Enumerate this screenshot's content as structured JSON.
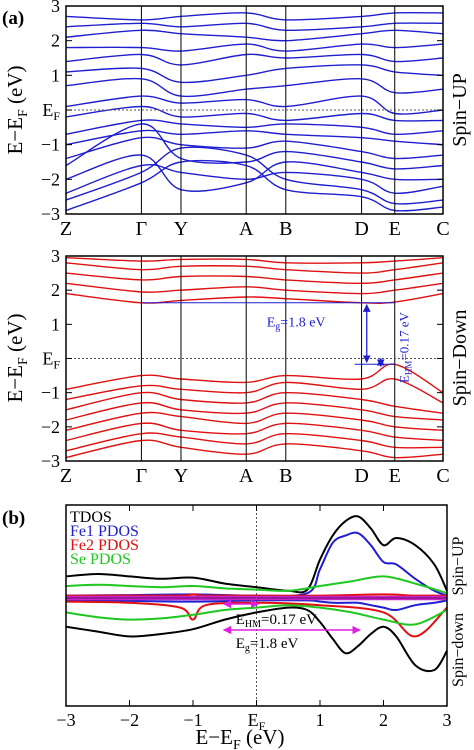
{
  "chart_data": [
    {
      "type": "line",
      "panel_label": "(a)",
      "side_label": "Spin−UP",
      "ylabel_main": "E−E",
      "ylabel_sub": "F",
      "ylabel_unit": " (eV)",
      "ylim": [
        -3,
        3
      ],
      "yticks": [
        "3",
        "2",
        "1",
        "E",
        "−1",
        "−2",
        "−3"
      ],
      "ytick_sub": "F",
      "kpoints": [
        "Z",
        "Γ",
        "Y",
        "A",
        "B",
        "D",
        "E",
        "C"
      ],
      "kpos": [
        0,
        0.2,
        0.305,
        0.478,
        0.583,
        0.784,
        0.872,
        1.0
      ],
      "band_color": "#1f1fd0",
      "series": [
        {
          "values": [
            -2.9,
            -2.1,
            -1.5,
            -1.6,
            -2.3,
            -2.5,
            -2.9,
            -2.8
          ]
        },
        {
          "values": [
            -2.6,
            -1.8,
            -1.1,
            -1.3,
            -2.0,
            -2.3,
            -2.7,
            -2.6
          ]
        },
        {
          "values": [
            -2.4,
            -1.6,
            -1.8,
            -2.0,
            -1.8,
            -2.0,
            -2.4,
            -2.2
          ]
        },
        {
          "values": [
            -2.0,
            -1.3,
            -2.3,
            -2.1,
            -1.5,
            -1.8,
            -2.0,
            -2.0
          ]
        },
        {
          "values": [
            -1.6,
            -0.4,
            -1.4,
            -1.5,
            -1.2,
            -1.5,
            -1.7,
            -1.6
          ]
        },
        {
          "values": [
            -1.4,
            -0.8,
            -1.0,
            -1.1,
            -0.9,
            -1.2,
            -1.4,
            -1.3
          ]
        },
        {
          "values": [
            -1.0,
            -0.6,
            -0.7,
            -0.6,
            -0.7,
            -0.8,
            -0.9,
            -1.0
          ]
        },
        {
          "values": [
            -0.7,
            -0.3,
            -0.4,
            -0.5,
            -0.4,
            -0.5,
            -0.7,
            -0.6
          ]
        },
        {
          "values": [
            -0.2,
            0.1,
            -0.2,
            -0.1,
            -0.3,
            -0.1,
            -0.3,
            -0.3
          ]
        },
        {
          "values": [
            0.1,
            0.4,
            0.2,
            0.3,
            0.1,
            0.4,
            -0.1,
            0.0
          ]
        },
        {
          "values": [
            0.7,
            0.9,
            0.4,
            0.6,
            0.7,
            0.9,
            0.5,
            0.6
          ]
        },
        {
          "values": [
            1.1,
            1.2,
            0.8,
            1.0,
            1.2,
            1.3,
            1.1,
            1.0
          ]
        },
        {
          "values": [
            1.4,
            1.6,
            1.3,
            1.6,
            1.5,
            1.6,
            1.4,
            1.5
          ]
        },
        {
          "values": [
            1.8,
            1.8,
            1.7,
            1.9,
            1.7,
            1.9,
            1.8,
            1.9
          ]
        },
        {
          "values": [
            2.1,
            2.3,
            2.2,
            2.1,
            2.0,
            2.2,
            2.3,
            2.2
          ]
        },
        {
          "values": [
            2.4,
            2.5,
            2.4,
            2.5,
            2.3,
            2.4,
            2.5,
            2.5
          ]
        },
        {
          "values": [
            2.7,
            2.6,
            2.7,
            2.8,
            2.6,
            2.7,
            2.8,
            2.8
          ]
        }
      ]
    },
    {
      "type": "line",
      "side_label": "Spin−Down",
      "ylabel_main": "E−E",
      "ylabel_sub": "F",
      "ylabel_unit": " (eV)",
      "ylim": [
        -3,
        3
      ],
      "yticks": [
        "3",
        "2",
        "1",
        "E",
        "−1",
        "−2",
        "−3"
      ],
      "ytick_sub": "F",
      "kpoints": [
        "Z",
        "Γ",
        "Y",
        "A",
        "B",
        "D",
        "E",
        "C"
      ],
      "kpos": [
        0,
        0.2,
        0.305,
        0.478,
        0.583,
        0.784,
        0.872,
        1.0
      ],
      "band_color": "#e01010",
      "series": [
        {
          "values": [
            -2.9,
            -2.4,
            -2.6,
            -2.8,
            -2.5,
            -2.7,
            -2.9,
            -2.8
          ]
        },
        {
          "values": [
            -2.7,
            -2.2,
            -2.3,
            -2.5,
            -2.2,
            -2.4,
            -2.6,
            -2.6
          ]
        },
        {
          "values": [
            -2.4,
            -1.9,
            -2.1,
            -2.2,
            -1.9,
            -2.1,
            -2.3,
            -2.4
          ]
        },
        {
          "values": [
            -2.1,
            -1.6,
            -1.7,
            -1.9,
            -1.6,
            -1.8,
            -2.0,
            -2.1
          ]
        },
        {
          "values": [
            -1.8,
            -1.3,
            -1.5,
            -1.6,
            -1.3,
            -1.5,
            -1.7,
            -1.8
          ]
        },
        {
          "values": [
            -1.5,
            -1.0,
            -1.2,
            -1.3,
            -1.0,
            -1.2,
            -1.4,
            -1.6
          ]
        },
        {
          "values": [
            -1.2,
            -0.8,
            -0.9,
            -1.0,
            -0.7,
            -0.9,
            -0.6,
            -1.3
          ]
        },
        {
          "values": [
            -0.9,
            -0.5,
            -0.6,
            -0.7,
            -0.5,
            -0.6,
            -0.17,
            -1.0
          ]
        },
        {
          "values": [
            1.9,
            1.63,
            1.7,
            1.8,
            1.75,
            1.63,
            1.65,
            1.9
          ]
        },
        {
          "values": [
            2.2,
            1.95,
            2.0,
            2.1,
            2.0,
            1.9,
            2.0,
            2.2
          ]
        },
        {
          "values": [
            2.5,
            2.3,
            2.4,
            2.4,
            2.3,
            2.2,
            2.3,
            2.5
          ]
        },
        {
          "values": [
            2.8,
            2.6,
            2.7,
            2.7,
            2.6,
            2.5,
            2.6,
            2.8
          ]
        },
        {
          "values": [
            2.95,
            2.85,
            2.9,
            2.9,
            2.8,
            2.8,
            2.85,
            2.95
          ]
        }
      ],
      "annotations": {
        "eg_prefix": "E",
        "eg_sub": "g",
        "eg_value": "=1.8 eV",
        "ehm_prefix": "E",
        "ehm_sub": "HM",
        "ehm_value": "=0.17 eV",
        "cbm": 1.63,
        "vbm": -0.17,
        "color": "#1f1fd0"
      }
    },
    {
      "type": "line",
      "panel_label": "(b)",
      "side_label_up": "Spin−UP",
      "side_label_down": "Spin−down",
      "xlabel_main": "E−E",
      "xlabel_sub": "F",
      "xlabel_unit": " (eV)",
      "xlim": [
        -3,
        3
      ],
      "xticks": [
        "−3",
        "−2",
        "−1",
        "E",
        "1",
        "2",
        "3"
      ],
      "xtick_sub": "F",
      "series": [
        {
          "name": "TDOS",
          "color": "#000000",
          "x": [
            -3,
            -2.5,
            -2,
            -1.5,
            -1,
            -0.5,
            0,
            0.5,
            0.8,
            1.0,
            1.2,
            1.4,
            1.6,
            1.8,
            2.0,
            2.2,
            2.5,
            2.8,
            3.0
          ],
          "up": [
            0.9,
            1.0,
            0.9,
            0.8,
            0.85,
            0.6,
            0.45,
            0.3,
            0.35,
            1.6,
            2.6,
            3.2,
            3.4,
            2.9,
            2.2,
            2.5,
            2.2,
            1.4,
            0.3
          ],
          "down": [
            -1.2,
            -1.4,
            -1.6,
            -1.5,
            -1.3,
            -0.9,
            -0.6,
            -0.4,
            -0.5,
            -1.0,
            -1.7,
            -2.3,
            -2.0,
            -1.5,
            -1.2,
            -1.6,
            -2.8,
            -3.0,
            -2.2
          ]
        },
        {
          "name": "Fe1 PDOS",
          "color": "#1f1fd0",
          "x": [
            -3,
            -2,
            -1,
            0,
            0.8,
            1.0,
            1.2,
            1.4,
            1.6,
            1.8,
            2.0,
            2.2,
            2.5,
            2.8,
            3.0
          ],
          "up": [
            0.1,
            0.12,
            0.15,
            0.1,
            0.2,
            1.2,
            2.3,
            2.6,
            2.7,
            2.2,
            1.5,
            1.4,
            0.8,
            0.3,
            0.1
          ],
          "down": [
            -0.1,
            -0.12,
            -0.15,
            -0.1,
            -0.1,
            -0.15,
            -0.2,
            -0.2,
            -0.2,
            -0.3,
            -0.4,
            -0.5,
            -0.3,
            -0.2,
            -0.1
          ]
        },
        {
          "name": "Fe2 PDOS",
          "color": "#e01010",
          "x": [
            -3,
            -2,
            -1.2,
            -1.0,
            -0.8,
            0,
            1,
            2,
            2.5,
            3.0
          ],
          "up": [
            0.1,
            0.1,
            0.1,
            0.15,
            0.1,
            0.1,
            0.1,
            0.15,
            0.1,
            0.1
          ],
          "down": [
            -0.15,
            -0.2,
            -0.4,
            -0.9,
            -0.3,
            -0.2,
            -0.3,
            -0.6,
            -1.6,
            -0.4
          ]
        },
        {
          "name": "Se PDOS",
          "color": "#1ec81e",
          "x": [
            -3,
            -2.5,
            -2,
            -1.5,
            -1,
            -0.5,
            0,
            0.5,
            1,
            1.5,
            2,
            2.5,
            3.0
          ],
          "up": [
            0.5,
            0.55,
            0.5,
            0.45,
            0.5,
            0.4,
            0.35,
            0.3,
            0.5,
            0.7,
            0.9,
            0.6,
            0.2
          ],
          "down": [
            -0.6,
            -0.8,
            -0.9,
            -0.85,
            -0.7,
            -0.5,
            -0.4,
            -0.3,
            -0.4,
            -0.6,
            -0.9,
            -1.1,
            -0.5
          ]
        },
        {
          "name": "",
          "color": "#cc22cc",
          "x": [
            -3,
            -2,
            -1,
            0,
            1,
            2,
            3
          ],
          "up": [
            0.05,
            0.05,
            0.05,
            0.05,
            0.05,
            0.05,
            0.05
          ],
          "down": [
            -0.05,
            -0.05,
            -0.05,
            -0.05,
            -0.05,
            -0.05,
            -0.05
          ]
        }
      ],
      "annotations": {
        "ehm_prefix": "E",
        "ehm_sub": "HM",
        "ehm_value": "=0.17 eV",
        "eg_prefix": "E",
        "eg_sub": "g",
        "eg_value": "=1.8 eV",
        "ehm_range": [
          -0.17,
          0
        ],
        "eg_range": [
          -0.17,
          1.63
        ],
        "color": "#e020e0"
      }
    }
  ]
}
